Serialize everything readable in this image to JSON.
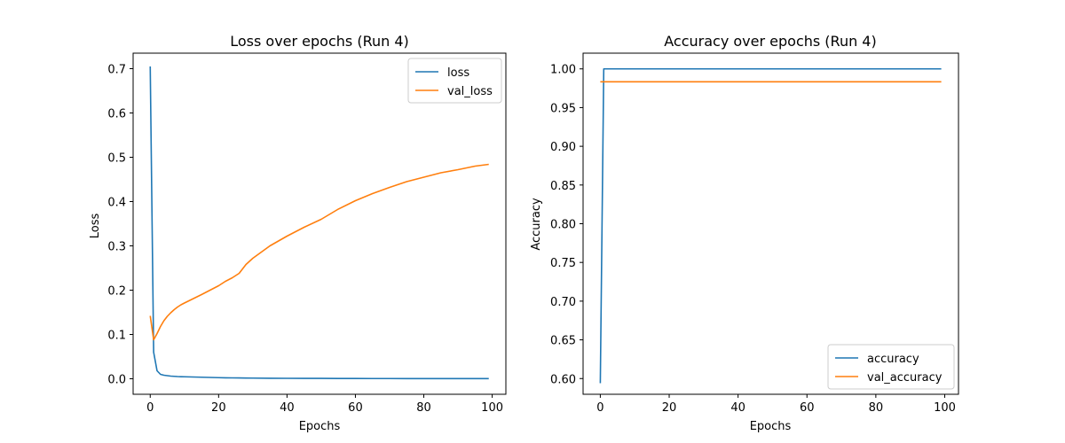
{
  "colors": {
    "series_1": "#1f77b4",
    "series_2": "#ff7f0e"
  },
  "chart_data": [
    {
      "type": "line",
      "title": "Loss over epochs (Run 4)",
      "xlabel": "Epochs",
      "ylabel": "Loss",
      "xlim": [
        -5,
        104
      ],
      "ylim": [
        -0.035,
        0.735
      ],
      "xticks": [
        0,
        20,
        40,
        60,
        80,
        100
      ],
      "yticks": [
        0.0,
        0.1,
        0.2,
        0.3,
        0.4,
        0.5,
        0.6,
        0.7
      ],
      "ytick_decimals": 1,
      "legend": "upper right",
      "grid": false,
      "x": [
        0,
        1,
        2,
        3,
        4,
        5,
        6,
        7,
        8,
        9,
        10,
        15,
        20,
        22,
        24,
        26,
        28,
        30,
        35,
        40,
        45,
        50,
        55,
        60,
        65,
        70,
        75,
        80,
        85,
        90,
        95,
        99
      ],
      "series": [
        {
          "name": "loss",
          "values": [
            0.705,
            0.06,
            0.018,
            0.01,
            0.008,
            0.007,
            0.006,
            0.0055,
            0.005,
            0.0047,
            0.0045,
            0.0035,
            0.0025,
            0.0022,
            0.002,
            0.0018,
            0.0016,
            0.0015,
            0.0012,
            0.001,
            0.0009,
            0.0008,
            0.0007,
            0.0006,
            0.0005,
            0.0005,
            0.0004,
            0.0004,
            0.0003,
            0.0003,
            0.0003,
            0.0003
          ]
        },
        {
          "name": "val_loss",
          "values": [
            0.142,
            0.088,
            0.102,
            0.118,
            0.131,
            0.141,
            0.149,
            0.156,
            0.162,
            0.167,
            0.171,
            0.19,
            0.21,
            0.22,
            0.228,
            0.238,
            0.258,
            0.272,
            0.3,
            0.322,
            0.342,
            0.36,
            0.383,
            0.402,
            0.418,
            0.432,
            0.445,
            0.455,
            0.465,
            0.472,
            0.48,
            0.484
          ]
        }
      ]
    },
    {
      "type": "line",
      "title": "Accuracy over epochs (Run 4)",
      "xlabel": "Epochs",
      "ylabel": "Accuracy",
      "xlim": [
        -5,
        104
      ],
      "ylim": [
        0.5797,
        1.0203
      ],
      "xticks": [
        0,
        20,
        40,
        60,
        80,
        100
      ],
      "yticks": [
        0.6,
        0.65,
        0.7,
        0.75,
        0.8,
        0.85,
        0.9,
        0.95,
        1.0
      ],
      "ytick_decimals": 2,
      "legend": "lower right",
      "grid": false,
      "x": [
        0,
        1,
        2,
        10,
        20,
        30,
        40,
        50,
        60,
        70,
        80,
        90,
        99
      ],
      "series": [
        {
          "name": "accuracy",
          "values": [
            0.594,
            1.0,
            1.0,
            1.0,
            1.0,
            1.0,
            1.0,
            1.0,
            1.0,
            1.0,
            1.0,
            1.0,
            1.0
          ]
        },
        {
          "name": "val_accuracy",
          "values": [
            0.9833,
            0.9833,
            0.9833,
            0.9833,
            0.9833,
            0.9833,
            0.9833,
            0.9833,
            0.9833,
            0.9833,
            0.9833,
            0.9833,
            0.9833
          ]
        }
      ]
    }
  ]
}
